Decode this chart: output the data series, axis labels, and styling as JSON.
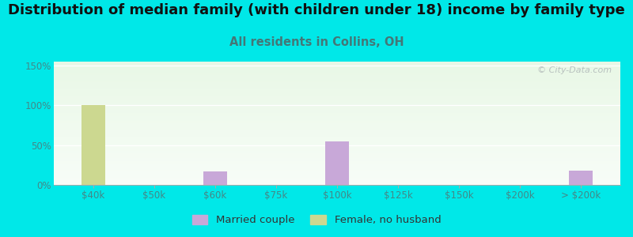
{
  "title": "Distribution of median family (with children under 18) income by family type",
  "subtitle": "All residents in Collins, OH",
  "background_color": "#00e8e8",
  "categories": [
    "$40k",
    "$50k",
    "$60k",
    "$75k",
    "$100k",
    "$125k",
    "$150k",
    "$200k",
    "> $200k"
  ],
  "married_couple": [
    0,
    0,
    17,
    0,
    55,
    0,
    0,
    0,
    18
  ],
  "female_no_husband": [
    100,
    0,
    0,
    0,
    0,
    0,
    0,
    0,
    0
  ],
  "married_color": "#c8a8d8",
  "female_color": "#ccd890",
  "ylim": [
    0,
    155
  ],
  "yticks": [
    0,
    50,
    100,
    150
  ],
  "ytick_labels": [
    "0%",
    "50%",
    "100%",
    "150%"
  ],
  "watermark": "© City-Data.com",
  "bar_width": 0.4,
  "title_fontsize": 13,
  "subtitle_fontsize": 10.5,
  "subtitle_color": "#447777",
  "ytick_color": "#448888",
  "xtick_color": "#448888",
  "tick_fontsize": 8.5,
  "legend_fontsize": 9.5
}
